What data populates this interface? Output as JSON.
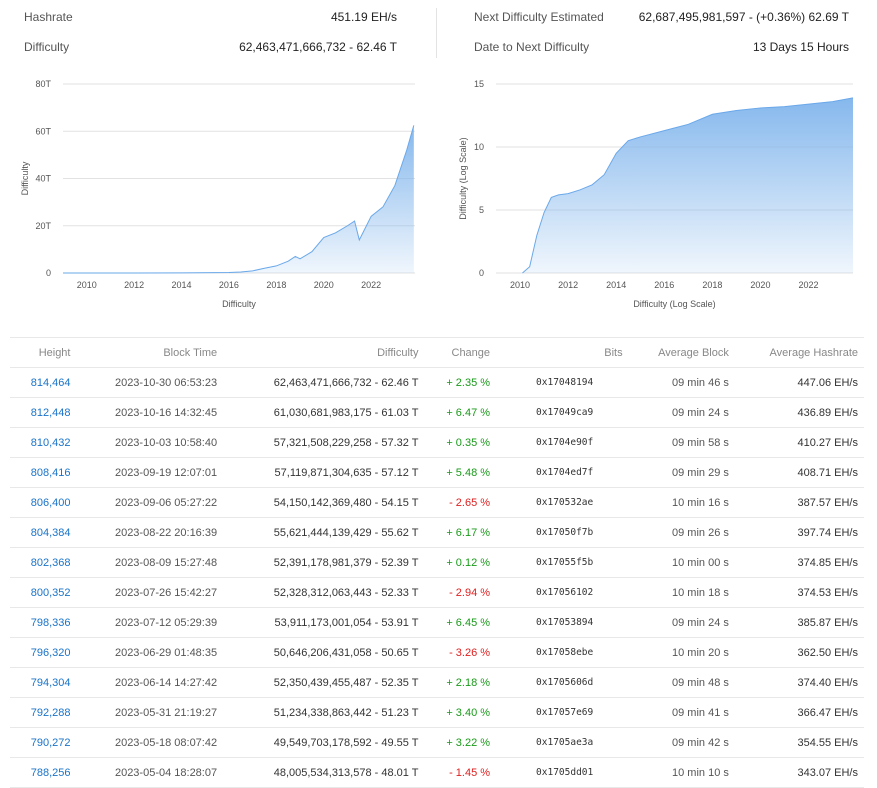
{
  "stats": {
    "hashrate_label": "Hashrate",
    "hashrate": "451.19 EH/s",
    "difficulty_label": "Difficulty",
    "difficulty": "62,463,471,666,732 - 62.46 T",
    "next_label": "Next Difficulty Estimated",
    "next": "62,687,495,981,597 - (+0.36%) 62.69 T",
    "date_label": "Date to Next Difficulty",
    "date": "13 Days 15 Hours"
  },
  "chart_data": [
    {
      "type": "area",
      "xlabel": "Difficulty",
      "ylabel": "Difficulty",
      "xlim": [
        2009,
        2023.85
      ],
      "ylim": [
        0,
        80
      ],
      "x_ticks": [
        "2010",
        "2012",
        "2014",
        "2016",
        "2018",
        "2020",
        "2022"
      ],
      "y_ticks": [
        "0",
        "20T",
        "40T",
        "60T",
        "80T"
      ],
      "grid": true,
      "color": "#7fb4ec",
      "x": [
        2009,
        2010,
        2012,
        2014,
        2016,
        2016.5,
        2017,
        2017.5,
        2018,
        2018.5,
        2018.8,
        2019,
        2019.5,
        2020,
        2020.5,
        2021,
        2021.3,
        2021.5,
        2021.7,
        2022,
        2022.5,
        2023,
        2023.5,
        2023.8
      ],
      "y": [
        0,
        0,
        0,
        0.05,
        0.2,
        0.4,
        0.9,
        2,
        3,
        5,
        7,
        6,
        9,
        15,
        17,
        20,
        22,
        14,
        18,
        24,
        28,
        37,
        52,
        62.5
      ]
    },
    {
      "type": "area",
      "xlabel": "Difficulty (Log Scale)",
      "ylabel": "Difficulty (Log Scale)",
      "xlim": [
        2009,
        2023.85
      ],
      "ylim": [
        0,
        15
      ],
      "x_ticks": [
        "2010",
        "2012",
        "2014",
        "2016",
        "2018",
        "2020",
        "2022"
      ],
      "y_ticks": [
        "0",
        "5",
        "10",
        "15"
      ],
      "grid": true,
      "color": "#7fb4ec",
      "x": [
        2010.1,
        2010.4,
        2010.7,
        2011,
        2011.3,
        2011.6,
        2012,
        2012.5,
        2013,
        2013.5,
        2014,
        2014.5,
        2015,
        2016,
        2017,
        2018,
        2019,
        2020,
        2021,
        2022,
        2023,
        2023.85
      ],
      "y": [
        0,
        0.5,
        3,
        4.8,
        6,
        6.2,
        6.3,
        6.6,
        7,
        7.8,
        9.5,
        10.5,
        10.8,
        11.3,
        11.8,
        12.6,
        12.9,
        13.1,
        13.2,
        13.4,
        13.6,
        13.9
      ]
    }
  ],
  "table": {
    "headers": [
      "Height",
      "Block Time",
      "Difficulty",
      "Change",
      "Bits",
      "Average Block",
      "Average Hashrate"
    ],
    "rows": [
      [
        "814,464",
        "2023-10-30 06:53:23",
        "62,463,471,666,732 - 62.46 T",
        "+ 2.35 %",
        "0x17048194",
        "09 min 46 s",
        "447.06 EH/s"
      ],
      [
        "812,448",
        "2023-10-16 14:32:45",
        "61,030,681,983,175 - 61.03 T",
        "+ 6.47 %",
        "0x17049ca9",
        "09 min 24 s",
        "436.89 EH/s"
      ],
      [
        "810,432",
        "2023-10-03 10:58:40",
        "57,321,508,229,258 - 57.32 T",
        "+ 0.35 %",
        "0x1704e90f",
        "09 min 58 s",
        "410.27 EH/s"
      ],
      [
        "808,416",
        "2023-09-19 12:07:01",
        "57,119,871,304,635 - 57.12 T",
        "+ 5.48 %",
        "0x1704ed7f",
        "09 min 29 s",
        "408.71 EH/s"
      ],
      [
        "806,400",
        "2023-09-06 05:27:22",
        "54,150,142,369,480 - 54.15 T",
        "- 2.65 %",
        "0x170532ae",
        "10 min 16 s",
        "387.57 EH/s"
      ],
      [
        "804,384",
        "2023-08-22 20:16:39",
        "55,621,444,139,429 - 55.62 T",
        "+ 6.17 %",
        "0x17050f7b",
        "09 min 26 s",
        "397.74 EH/s"
      ],
      [
        "802,368",
        "2023-08-09 15:27:48",
        "52,391,178,981,379 - 52.39 T",
        "+ 0.12 %",
        "0x17055f5b",
        "10 min 00 s",
        "374.85 EH/s"
      ],
      [
        "800,352",
        "2023-07-26 15:42:27",
        "52,328,312,063,443 - 52.33 T",
        "- 2.94 %",
        "0x17056102",
        "10 min 18 s",
        "374.53 EH/s"
      ],
      [
        "798,336",
        "2023-07-12 05:29:39",
        "53,911,173,001,054 - 53.91 T",
        "+ 6.45 %",
        "0x17053894",
        "09 min 24 s",
        "385.87 EH/s"
      ],
      [
        "796,320",
        "2023-06-29 01:48:35",
        "50,646,206,431,058 - 50.65 T",
        "- 3.26 %",
        "0x17058ebe",
        "10 min 20 s",
        "362.50 EH/s"
      ],
      [
        "794,304",
        "2023-06-14 14:27:42",
        "52,350,439,455,487 - 52.35 T",
        "+ 2.18 %",
        "0x1705606d",
        "09 min 48 s",
        "374.40 EH/s"
      ],
      [
        "792,288",
        "2023-05-31 21:19:27",
        "51,234,338,863,442 - 51.23 T",
        "+ 3.40 %",
        "0x17057e69",
        "09 min 41 s",
        "366.47 EH/s"
      ],
      [
        "790,272",
        "2023-05-18 08:07:42",
        "49,549,703,178,592 - 49.55 T",
        "+ 3.22 %",
        "0x1705ae3a",
        "09 min 42 s",
        "354.55 EH/s"
      ],
      [
        "788,256",
        "2023-05-04 18:28:07",
        "48,005,534,313,578 - 48.01 T",
        "- 1.45 %",
        "0x1705dd01",
        "10 min 10 s",
        "343.07 EH/s"
      ]
    ]
  }
}
